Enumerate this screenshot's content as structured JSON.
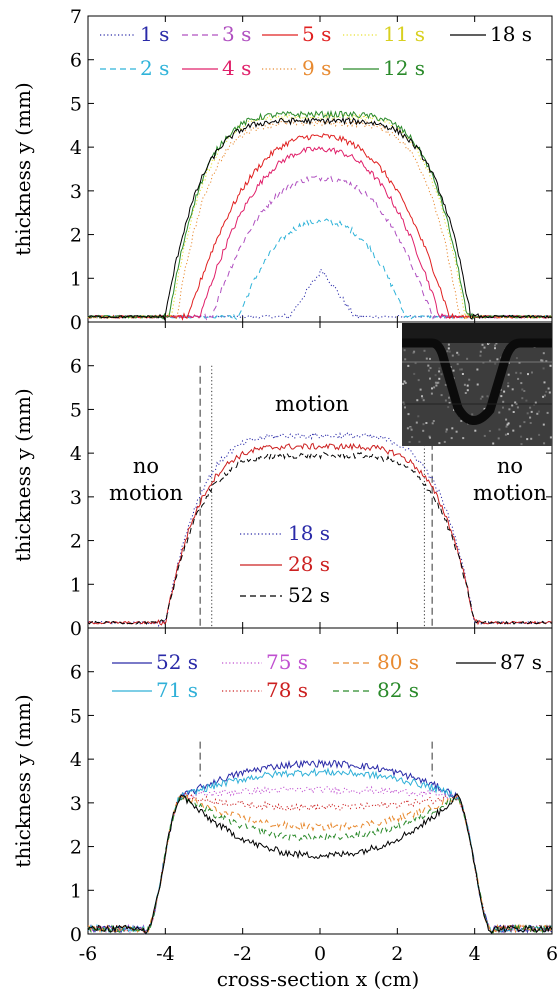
{
  "chart_data": [
    {
      "type": "line",
      "panel": "top",
      "ylabel": "thickness  y (mm)",
      "xlim": [
        -6,
        6
      ],
      "ylim": [
        0,
        7
      ],
      "yticks": [
        0,
        1,
        2,
        3,
        4,
        5,
        6,
        7
      ],
      "ytick_labels": [
        "0",
        "1",
        "2",
        "3",
        "4",
        "5",
        "6",
        "7"
      ],
      "grid": false,
      "legend_position": "top",
      "series": [
        {
          "name": "1 s",
          "color": "#2a2aa8",
          "dash": "dotted",
          "left": -0.8,
          "right": 0.9,
          "peak": 1.2,
          "shape": "triangle"
        },
        {
          "name": "2 s",
          "color": "#2fb3d9",
          "dash": "dashed",
          "left": -2.1,
          "right": 2.2,
          "peak": 2.3,
          "shape": "round"
        },
        {
          "name": "3 s",
          "color": "#b050c0",
          "dash": "dashed",
          "left": -2.8,
          "right": 2.9,
          "peak": 3.3,
          "shape": "round"
        },
        {
          "name": "4 s",
          "color": "#e0206a",
          "dash": "solid",
          "left": -3.1,
          "right": 3.1,
          "peak": 3.95,
          "shape": "round"
        },
        {
          "name": "5 s",
          "color": "#e02020",
          "dash": "solid",
          "left": -3.4,
          "right": 3.35,
          "peak": 4.25,
          "shape": "round"
        },
        {
          "name": "9 s",
          "color": "#e88a30",
          "dash": "dotted",
          "left": -3.7,
          "right": 3.6,
          "peak": 4.55,
          "shape": "flat"
        },
        {
          "name": "11 s",
          "color": "#e8e030",
          "dash": "dotted",
          "left": -3.85,
          "right": 3.75,
          "peak": 4.7,
          "shape": "flat"
        },
        {
          "name": "12 s",
          "color": "#2a8a2a",
          "dash": "solid",
          "left": -3.9,
          "right": 3.8,
          "peak": 4.75,
          "shape": "flat"
        },
        {
          "name": "18 s",
          "color": "#000000",
          "dash": "solid",
          "left": -4.0,
          "right": 3.9,
          "peak": 4.6,
          "shape": "flat"
        }
      ]
    },
    {
      "type": "line",
      "panel": "middle",
      "ylabel": "thickness  y (mm)",
      "xlim": [
        -6,
        6
      ],
      "ylim": [
        0,
        7
      ],
      "yticks": [
        0,
        1,
        2,
        3,
        4,
        5,
        6
      ],
      "ytick_labels": [
        "0",
        "1",
        "2",
        "3",
        "4",
        "5",
        "6"
      ],
      "grid": false,
      "legend_position": "center",
      "annotations": {
        "motion": "motion",
        "no_motion_left_1": "no",
        "no_motion_left_2": "motion",
        "no_motion_right_1": "no",
        "no_motion_right_2": "motion"
      },
      "vertical_lines": [
        {
          "x": -3.1,
          "style": "dashed"
        },
        {
          "x": -2.8,
          "style": "dotted"
        },
        {
          "x": 2.7,
          "style": "dotted"
        },
        {
          "x": 2.9,
          "style": "dashed"
        }
      ],
      "inset": "grayscale photograph of cross-section",
      "series": [
        {
          "name": "18 s",
          "color": "#2a2aa8",
          "dash": "dotted",
          "left": -4.0,
          "right": 4.0,
          "peak": 4.4,
          "shape": "flat"
        },
        {
          "name": "28 s",
          "color": "#cc2020",
          "dash": "solid",
          "left": -4.0,
          "right": 4.0,
          "peak": 4.15,
          "shape": "flat"
        },
        {
          "name": "52 s",
          "color": "#000000",
          "dash": "dashed",
          "left": -4.0,
          "right": 4.0,
          "peak": 3.95,
          "shape": "flat"
        }
      ]
    },
    {
      "type": "line",
      "panel": "bottom",
      "xlabel": "cross-section  x (cm)",
      "ylabel": "thickness  y (mm)",
      "xlim": [
        -6,
        6
      ],
      "ylim": [
        0,
        7
      ],
      "xticks": [
        -6,
        -4,
        -2,
        0,
        2,
        4,
        6
      ],
      "xtick_labels": [
        "-6",
        "-4",
        "-2",
        "0",
        "2",
        "4",
        "6"
      ],
      "yticks": [
        0,
        1,
        2,
        3,
        4,
        5,
        6
      ],
      "ytick_labels": [
        "0",
        "1",
        "2",
        "3",
        "4",
        "5",
        "6"
      ],
      "grid": false,
      "legend_position": "top",
      "vertical_lines": [
        {
          "x": -3.1,
          "style": "dashed"
        },
        {
          "x": 2.9,
          "style": "dashed"
        }
      ],
      "series": [
        {
          "name": "52 s",
          "color": "#2a2aa8",
          "dash": "solid",
          "center": 3.9
        },
        {
          "name": "71 s",
          "color": "#30b0d8",
          "dash": "solid",
          "center": 3.7
        },
        {
          "name": "75 s",
          "color": "#c050d0",
          "dash": "dotted",
          "center": 3.3
        },
        {
          "name": "78 s",
          "color": "#cc2020",
          "dash": "dotted",
          "center": 2.9
        },
        {
          "name": "80 s",
          "color": "#e88a30",
          "dash": "dashed",
          "center": 2.45
        },
        {
          "name": "82 s",
          "color": "#2a8a2a",
          "dash": "dashed",
          "center": 2.2
        },
        {
          "name": "87 s",
          "color": "#000000",
          "dash": "solid",
          "center": 1.8
        }
      ]
    }
  ]
}
